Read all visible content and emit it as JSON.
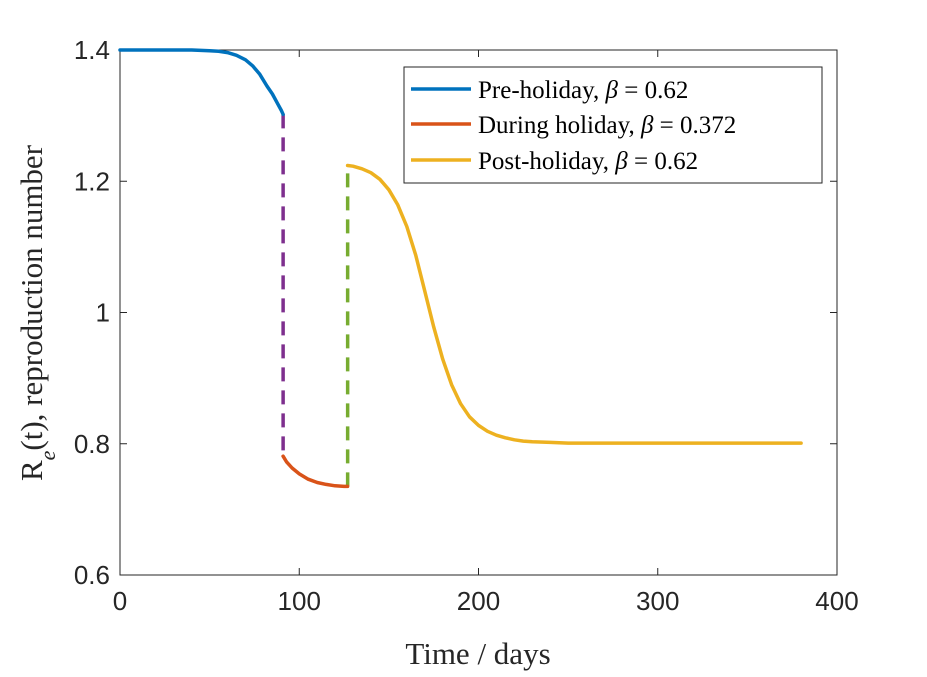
{
  "chart_data": {
    "type": "line",
    "xlabel": "Time / days",
    "ylabel": "R_e(t), reproduction number",
    "xlim": [
      0,
      400
    ],
    "ylim": [
      0.6,
      1.4
    ],
    "xticks": [
      0,
      100,
      200,
      300,
      400
    ],
    "xtick_labels": [
      "0",
      "100",
      "200",
      "300",
      "400"
    ],
    "yticks": [
      0.6,
      0.8,
      1.0,
      1.2,
      1.4
    ],
    "ytick_labels": [
      "0.6",
      "0.8",
      "1",
      "1.2",
      "1.4"
    ],
    "grid": false,
    "legend_position": "top-right",
    "series": [
      {
        "name": "Pre-holiday, β = 0.62",
        "color": "#0072BD",
        "x": [
          0,
          10,
          20,
          30,
          40,
          50,
          55,
          60,
          65,
          70,
          74,
          78,
          82,
          85,
          88,
          90,
          91
        ],
        "y": [
          1.4,
          1.4,
          1.4,
          1.4,
          1.4,
          1.399,
          1.398,
          1.396,
          1.392,
          1.385,
          1.376,
          1.363,
          1.345,
          1.333,
          1.318,
          1.308,
          1.302
        ]
      },
      {
        "name": "During holiday, β = 0.372",
        "color": "#D95319",
        "x": [
          91,
          93,
          96,
          100,
          105,
          110,
          115,
          120,
          125,
          127
        ],
        "y": [
          0.781,
          0.772,
          0.763,
          0.754,
          0.746,
          0.741,
          0.738,
          0.736,
          0.735,
          0.735
        ]
      },
      {
        "name": "Post-holiday, β = 0.62",
        "color": "#EDB120",
        "x": [
          127,
          130,
          135,
          140,
          145,
          150,
          155,
          160,
          165,
          170,
          175,
          180,
          185,
          190,
          195,
          200,
          205,
          210,
          215,
          220,
          225,
          230,
          240,
          250,
          260,
          280,
          300,
          320,
          340,
          360,
          380
        ],
        "y": [
          1.224,
          1.223,
          1.219,
          1.213,
          1.203,
          1.187,
          1.164,
          1.131,
          1.087,
          1.033,
          0.978,
          0.929,
          0.89,
          0.861,
          0.841,
          0.828,
          0.819,
          0.813,
          0.809,
          0.806,
          0.804,
          0.803,
          0.802,
          0.801,
          0.801,
          0.801,
          0.801,
          0.801,
          0.801,
          0.801,
          0.801
        ]
      }
    ],
    "transitions": [
      {
        "x": 91,
        "y_from": 1.302,
        "y_to": 0.781,
        "color": "#7E2F8E",
        "style": "dashed"
      },
      {
        "x": 127,
        "y_from": 0.735,
        "y_to": 1.224,
        "color": "#77AC30",
        "style": "dashed"
      }
    ]
  }
}
